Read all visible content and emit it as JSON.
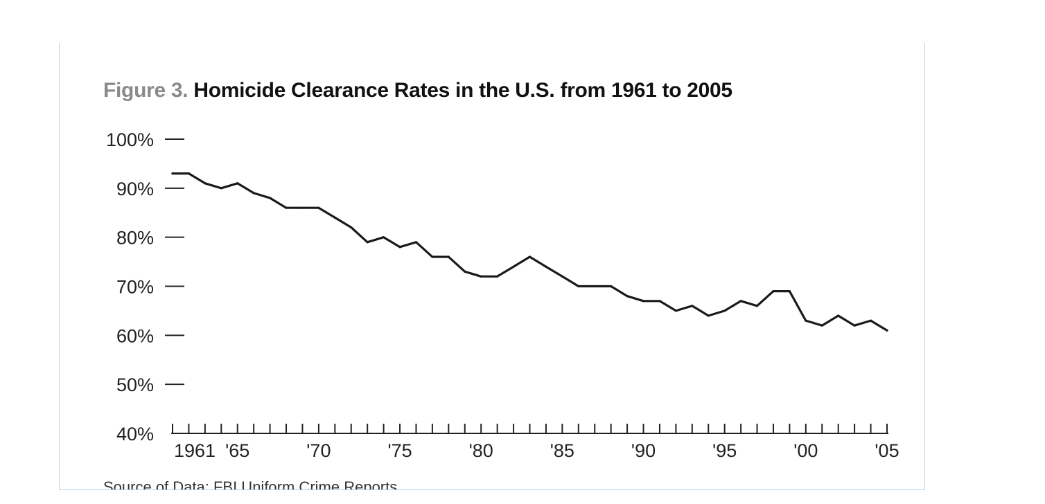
{
  "figure": {
    "label": "Figure 3.",
    "title": "Homicide Clearance Rates in the U.S. from 1961 to 2005",
    "source": "Source of Data: FBI Uniform Crime Reports"
  },
  "chart_data": {
    "type": "line",
    "title": "Homicide Clearance Rates in the U.S. from 1961 to 2005",
    "xlabel": "",
    "ylabel": "",
    "grid": false,
    "xlim": [
      1961,
      2005
    ],
    "ylim": [
      40,
      100
    ],
    "y_ticks": [
      {
        "value": 100,
        "label": "100%"
      },
      {
        "value": 90,
        "label": "90%"
      },
      {
        "value": 80,
        "label": "80%"
      },
      {
        "value": 70,
        "label": "70%"
      },
      {
        "value": 60,
        "label": "60%"
      },
      {
        "value": 50,
        "label": "50%"
      },
      {
        "value": 40,
        "label": "40%"
      }
    ],
    "x_ticks": [
      {
        "value": 1961,
        "label": "1961"
      },
      {
        "value": 1965,
        "label": "'65"
      },
      {
        "value": 1970,
        "label": "'70"
      },
      {
        "value": 1975,
        "label": "'75"
      },
      {
        "value": 1980,
        "label": "'80"
      },
      {
        "value": 1985,
        "label": "'85"
      },
      {
        "value": 1990,
        "label": "'90"
      },
      {
        "value": 1995,
        "label": "'95"
      },
      {
        "value": 2000,
        "label": "'00"
      },
      {
        "value": 2005,
        "label": "'05"
      }
    ],
    "series": [
      {
        "name": "Homicide clearance rate",
        "color": "#1a1a1a",
        "x": [
          1961,
          1962,
          1963,
          1964,
          1965,
          1966,
          1967,
          1968,
          1969,
          1970,
          1971,
          1972,
          1973,
          1974,
          1975,
          1976,
          1977,
          1978,
          1979,
          1980,
          1981,
          1982,
          1983,
          1984,
          1985,
          1986,
          1987,
          1988,
          1989,
          1990,
          1991,
          1992,
          1993,
          1994,
          1995,
          1996,
          1997,
          1998,
          1999,
          2000,
          2001,
          2002,
          2003,
          2004,
          2005
        ],
        "values": [
          93,
          93,
          91,
          90,
          91,
          89,
          88,
          86,
          86,
          86,
          84,
          82,
          79,
          80,
          78,
          79,
          76,
          76,
          73,
          72,
          72,
          74,
          76,
          74,
          72,
          70,
          70,
          70,
          68,
          67,
          67,
          65,
          66,
          64,
          65,
          67,
          66,
          69,
          69,
          63,
          62,
          64,
          62,
          63,
          61
        ]
      }
    ]
  }
}
